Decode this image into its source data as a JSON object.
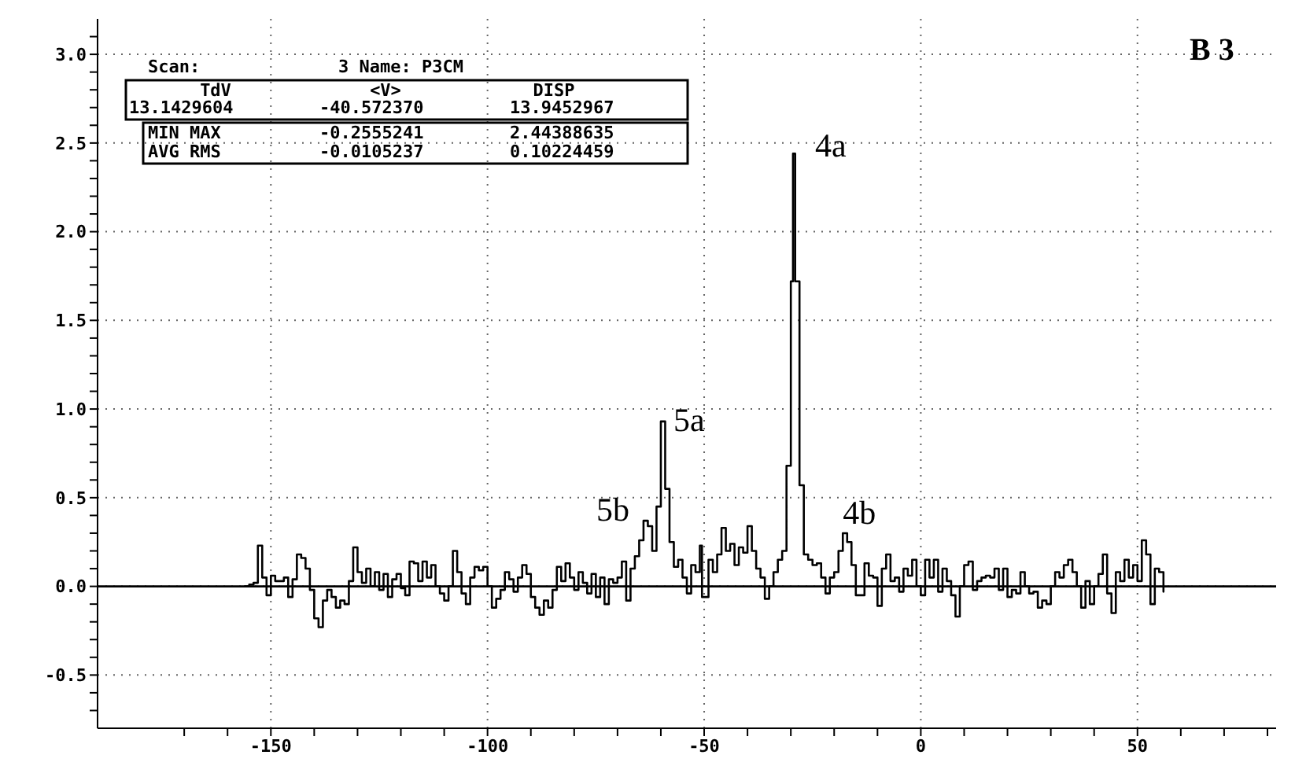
{
  "chart_data": {
    "type": "step",
    "xlim": [
      -190,
      82
    ],
    "ylim": [
      -0.8,
      3.2
    ],
    "xticks": [
      {
        "value": -170,
        "label": null
      },
      {
        "value": -160,
        "label": null
      },
      -150,
      {
        "value": -140,
        "label": null
      },
      {
        "value": -130,
        "label": null
      },
      {
        "value": -120,
        "label": null
      },
      {
        "value": -110,
        "label": null
      },
      -100,
      {
        "value": -90,
        "label": null
      },
      {
        "value": -80,
        "label": null
      },
      {
        "value": -70,
        "label": null
      },
      {
        "value": -60,
        "label": null
      },
      -50,
      {
        "value": -40,
        "label": null
      },
      {
        "value": -30,
        "label": null
      },
      {
        "value": -20,
        "label": null
      },
      {
        "value": -10,
        "label": null
      },
      0,
      {
        "value": 10,
        "label": null
      },
      {
        "value": 20,
        "label": null
      },
      {
        "value": 30,
        "label": null
      },
      {
        "value": 40,
        "label": null
      },
      50,
      {
        "value": 60,
        "label": null
      },
      {
        "value": 70,
        "label": null
      },
      {
        "value": 80,
        "label": null
      }
    ],
    "yticks": [
      {
        "value": -0.7,
        "label": null
      },
      {
        "value": -0.6,
        "label": null
      },
      -0.5,
      {
        "value": -0.4,
        "label": null
      },
      {
        "value": -0.3,
        "label": null
      },
      {
        "value": -0.2,
        "label": null
      },
      {
        "value": -0.1,
        "label": null
      },
      {
        "value": 0,
        "label": "0.0"
      },
      {
        "value": 0.1,
        "label": null
      },
      {
        "value": 0.2,
        "label": null
      },
      {
        "value": 0.3,
        "label": null
      },
      {
        "value": 0.4,
        "label": null
      },
      0.5,
      {
        "value": 0.6,
        "label": null
      },
      {
        "value": 0.7,
        "label": null
      },
      {
        "value": 0.8,
        "label": null
      },
      {
        "value": 0.9,
        "label": null
      },
      {
        "value": 1,
        "label": "1.0"
      },
      {
        "value": 1.1,
        "label": null
      },
      {
        "value": 1.2,
        "label": null
      },
      {
        "value": 1.3,
        "label": null
      },
      {
        "value": 1.4,
        "label": null
      },
      1.5,
      {
        "value": 1.6,
        "label": null
      },
      {
        "value": 1.7,
        "label": null
      },
      {
        "value": 1.8,
        "label": null
      },
      {
        "value": 1.9,
        "label": null
      },
      {
        "value": 2,
        "label": "2.0"
      },
      {
        "value": 2.1,
        "label": null
      },
      {
        "value": 2.2,
        "label": null
      },
      {
        "value": 2.3,
        "label": null
      },
      {
        "value": 2.4,
        "label": null
      },
      2.5,
      {
        "value": 2.6,
        "label": null
      },
      {
        "value": 2.7,
        "label": null
      },
      {
        "value": 2.8,
        "label": null
      },
      {
        "value": 2.9,
        "label": null
      },
      {
        "value": 3,
        "label": "3.0"
      },
      {
        "value": 3.1,
        "label": null
      }
    ],
    "grid": true,
    "ref_lines": [
      {
        "axis": "y",
        "value": 0,
        "color": "#000000"
      }
    ],
    "annotations": [
      "Scan:",
      "3 Name: P3CM",
      "TdV",
      "<V>",
      "DISP",
      "13.1429604",
      "-40.572370",
      "13.9452967",
      "MIN MAX",
      "-0.2555241",
      "2.44388635",
      "AVG RMS",
      "-0.0105237",
      "0.10224459",
      "B 3",
      {
        "text": "4a",
        "x": -29.5,
        "y": 2.44
      },
      {
        "text": "5a",
        "x": -60,
        "y": 0.93
      },
      {
        "text": "5b",
        "x": -64,
        "y": 0.37
      },
      {
        "text": "4b",
        "x": -18,
        "y": 0.3
      }
    ],
    "series": [
      {
        "color": "#000000",
        "x": [
          -156,
          -155,
          -154,
          -153,
          -152,
          -151,
          -150,
          -149,
          -148,
          -147,
          -146,
          -145,
          -144,
          -143,
          -142,
          -141,
          -140,
          -139,
          -138,
          -137,
          -136,
          -135,
          -134,
          -133,
          -132,
          -131,
          -130,
          -129,
          -128,
          -127,
          -126,
          -125,
          -124,
          -123,
          -122,
          -121,
          -120,
          -119,
          -118,
          -117,
          -116,
          -115,
          -114,
          -113,
          -112,
          -111,
          -110,
          -109,
          -108,
          -107,
          -106,
          -105,
          -104,
          -103,
          -102,
          -101,
          -100,
          -99,
          -98,
          -97,
          -96,
          -95,
          -94,
          -93,
          -92,
          -91,
          -90,
          -89,
          -88,
          -87,
          -86,
          -85,
          -84,
          -83,
          -82,
          -81,
          -80,
          -79,
          -78,
          -77,
          -76,
          -75,
          -74,
          -73,
          -72,
          -71,
          -70,
          -69,
          -68,
          -67,
          -66,
          -65,
          -64,
          -63,
          -62,
          -61,
          -60,
          -59,
          -58,
          -57,
          -56,
          -55,
          -54,
          -53,
          -52,
          -51,
          -50.5,
          -49,
          -48,
          -47,
          -46,
          -45,
          -44,
          -43,
          -42,
          -41,
          -40,
          -39,
          -38,
          -37,
          -36,
          -35,
          -34,
          -33,
          -32,
          -31,
          -30,
          -29.5,
          -29,
          -28,
          -27,
          -26,
          -25,
          -24,
          -23,
          -22,
          -21,
          -20,
          -19,
          -18,
          -17,
          -16,
          -15,
          -14,
          -13,
          -12,
          -11,
          -10,
          -9,
          -8,
          -7,
          -6,
          -5,
          -4,
          -3,
          -2,
          -1,
          0,
          1,
          2,
          3,
          4,
          5,
          6,
          7,
          8,
          9,
          10,
          11,
          12,
          13,
          14,
          15,
          16,
          17,
          18,
          19,
          20,
          21,
          22,
          23,
          24,
          25,
          26,
          27,
          28,
          29,
          30,
          31,
          32,
          33,
          34,
          35,
          36,
          37,
          38,
          39,
          40,
          41,
          42,
          43,
          44,
          45,
          46,
          47,
          48,
          49,
          50,
          51,
          52,
          53,
          54,
          55,
          56
        ],
        "values": [
          0,
          0.01,
          0.02,
          0.23,
          0.05,
          -0.05,
          0.06,
          0.03,
          0.03,
          0.05,
          -0.06,
          0.04,
          0.18,
          0.16,
          0.1,
          -0.02,
          -0.18,
          -0.23,
          -0.08,
          -0.02,
          -0.06,
          -0.12,
          -0.08,
          -0.1,
          0.03,
          0.22,
          0.08,
          0.02,
          0.1,
          0,
          0.08,
          -0.02,
          0.07,
          -0.06,
          0.04,
          0.07,
          -0.01,
          -0.05,
          0.14,
          0.13,
          0.03,
          0.14,
          0.05,
          0.12,
          0,
          -0.04,
          -0.08,
          0,
          0.2,
          0.08,
          -0.04,
          -0.1,
          0.05,
          0.11,
          0.09,
          0.11,
          0,
          -0.12,
          -0.07,
          -0.02,
          0.08,
          0.04,
          -0.03,
          0.05,
          0.12,
          0.07,
          -0.06,
          -0.12,
          -0.16,
          -0.08,
          -0.12,
          -0.02,
          0.11,
          0.03,
          0.13,
          0.05,
          -0.02,
          0.08,
          0.02,
          -0.04,
          0.07,
          -0.06,
          0.05,
          -0.1,
          0.04,
          0.02,
          0.05,
          0.14,
          -0.08,
          0.1,
          0.17,
          0.26,
          0.37,
          0.34,
          0.2,
          0.45,
          0.93,
          0.55,
          0.25,
          0.11,
          0.15,
          0.05,
          -0.04,
          0.12,
          0.08,
          0.23,
          -0.06,
          0.15,
          0.08,
          0.18,
          0.33,
          0.2,
          0.24,
          0.12,
          0.22,
          0.19,
          0.34,
          0.2,
          0.1,
          0.05,
          -0.07,
          0,
          0.08,
          0.15,
          0.2,
          0.68,
          1.72,
          2.44,
          1.72,
          0.57,
          0.18,
          0.15,
          0.12,
          0.13,
          0.05,
          -0.04,
          0.05,
          0.08,
          0.2,
          0.3,
          0.25,
          0.12,
          -0.05,
          -0.05,
          0.13,
          0.06,
          0.05,
          -0.11,
          0.1,
          0.18,
          0.03,
          0.05,
          -0.03,
          0.1,
          0.06,
          0.15,
          0,
          -0.05,
          0.15,
          0.05,
          0.15,
          -0.03,
          0.1,
          0.03,
          -0.05,
          -0.17,
          0,
          0.12,
          0.14,
          -0.02,
          0.03,
          0.05,
          0.06,
          0.05,
          0.1,
          -0.02,
          0.1,
          -0.06,
          -0.02,
          -0.04,
          0.08,
          0,
          -0.04,
          -0.03,
          -0.12,
          -0.08,
          -0.1,
          0,
          0.08,
          0.05,
          0.12,
          0.15,
          0.08,
          0,
          -0.12,
          0.03,
          -0.1,
          0,
          0.07,
          0.18,
          -0.04,
          -0.15,
          0.08,
          0.03,
          0.15,
          0.05,
          0.12,
          0.03,
          0.26,
          0.18,
          -0.1,
          0.1,
          0.08,
          -0.03
        ]
      }
    ]
  }
}
